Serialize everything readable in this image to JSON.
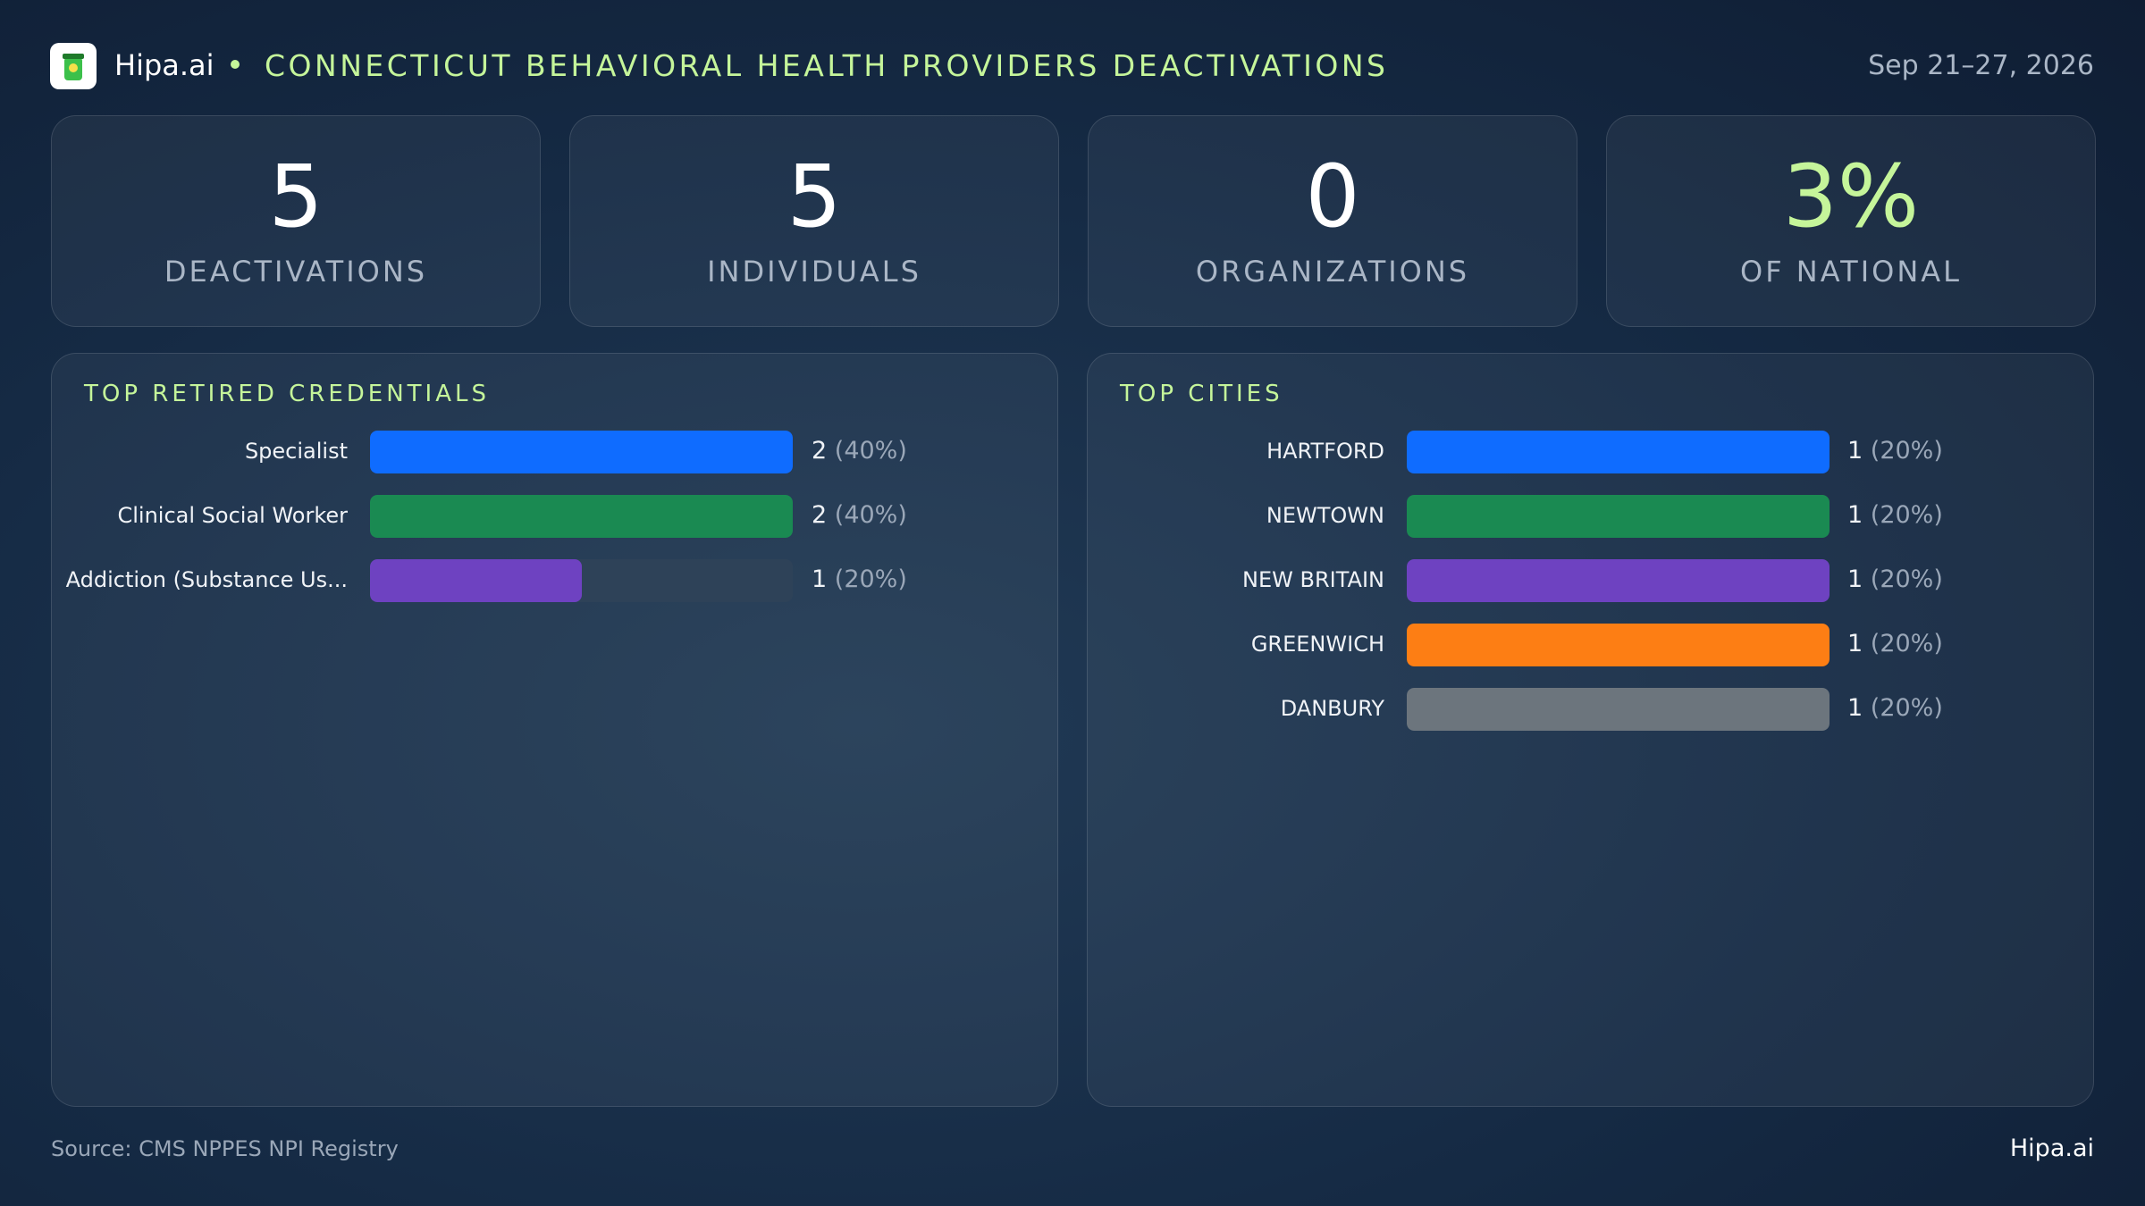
{
  "header": {
    "brand": "Hipa.ai",
    "title": "CONNECTICUT BEHAVIORAL HEALTH PROVIDERS DEACTIVATIONS",
    "date": "Sep 21–27, 2026"
  },
  "kpis": [
    {
      "value": 5,
      "label": "DEACTIVATIONS"
    },
    {
      "value": 5,
      "label": "INDIVIDUALS"
    },
    {
      "value": 0,
      "label": "ORGANIZATIONS"
    },
    {
      "value": "3%",
      "label": "OF NATIONAL",
      "accent": "#c5f59a"
    }
  ],
  "panels": [
    {
      "title": "TOP RETIRED CREDENTIALS",
      "items": [
        {
          "label": "Specialist",
          "value": 2,
          "share": "(40%)",
          "color": "#0f6cff"
        },
        {
          "label": "Clinical Social Worker",
          "value": 2,
          "share": "(40%)",
          "color": "#1a8a52"
        },
        {
          "label": "Addiction (Substance Us...",
          "value": 1,
          "share": "(20%)",
          "color": "#6e42c1"
        }
      ]
    },
    {
      "title": "TOP CITIES",
      "items": [
        {
          "label": "HARTFORD",
          "value": 1,
          "share": "(20%)",
          "color": "#0f6cff"
        },
        {
          "label": "NEWTOWN",
          "value": 1,
          "share": "(20%)",
          "color": "#1a8a52"
        },
        {
          "label": "NEW BRITAIN",
          "value": 1,
          "share": "(20%)",
          "color": "#6e42c1"
        },
        {
          "label": "GREENWICH",
          "value": 1,
          "share": "(20%)",
          "color": "#fd7e14"
        },
        {
          "label": "DANBURY",
          "value": 1,
          "share": "(20%)",
          "color": "#6c757d"
        }
      ]
    }
  ],
  "footer": {
    "source": "Source: CMS NPPES NPI Registry",
    "brand": "Hipa.ai"
  }
}
